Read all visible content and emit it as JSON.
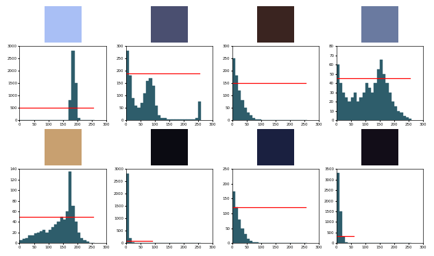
{
  "chart_data": [
    {
      "type": "histogram",
      "color": "#2e5d6b",
      "bins": [
        0,
        10,
        20,
        30,
        40,
        50,
        60,
        70,
        80,
        90,
        100,
        110,
        120,
        130,
        140,
        150,
        160,
        170,
        180,
        190,
        200,
        210,
        220,
        230,
        240,
        250,
        260
      ],
      "counts": [
        0,
        0,
        0,
        0,
        0,
        0,
        0,
        0,
        0,
        0,
        0,
        0,
        0,
        0,
        0,
        0,
        0,
        800,
        2800,
        1500,
        100,
        0,
        0,
        0,
        0,
        0
      ],
      "xlim": [
        0,
        300
      ],
      "xticks": [
        0,
        50,
        100,
        150,
        200,
        250,
        300
      ],
      "ylim": [
        0,
        3000
      ],
      "yticks": [
        0,
        500,
        1000,
        1500,
        2000,
        2500,
        3000
      ],
      "hline": {
        "value": 500,
        "x": [
          0,
          255
        ],
        "color": "#ff0000"
      }
    },
    {
      "type": "histogram",
      "color": "#2e5d6b",
      "bins": [
        0,
        10,
        20,
        30,
        40,
        50,
        60,
        70,
        80,
        90,
        100,
        110,
        120,
        130,
        140,
        150,
        160,
        170,
        180,
        190,
        200,
        210,
        220,
        230,
        240,
        250,
        260
      ],
      "counts": [
        280,
        180,
        90,
        60,
        50,
        70,
        110,
        160,
        170,
        140,
        60,
        20,
        10,
        8,
        5,
        5,
        5,
        5,
        5,
        5,
        5,
        5,
        5,
        5,
        10,
        75
      ],
      "xlim": [
        0,
        300
      ],
      "xticks": [
        0,
        50,
        100,
        150,
        200,
        250,
        300
      ],
      "ylim": [
        0,
        300
      ],
      "yticks": [
        0,
        50,
        100,
        150,
        200,
        250,
        300
      ],
      "hline": {
        "value": 190,
        "x": [
          0,
          255
        ],
        "color": "#ff0000"
      }
    },
    {
      "type": "histogram",
      "color": "#2e5d6b",
      "bins": [
        0,
        10,
        20,
        30,
        40,
        50,
        60,
        70,
        80,
        90,
        100,
        110,
        120,
        130,
        140,
        150,
        160,
        170,
        180,
        190,
        200,
        210,
        220,
        230,
        240,
        250,
        260
      ],
      "counts": [
        250,
        180,
        120,
        80,
        50,
        30,
        20,
        10,
        5,
        3,
        2,
        1,
        0,
        0,
        0,
        0,
        0,
        0,
        0,
        0,
        0,
        0,
        0,
        0,
        0,
        0
      ],
      "xlim": [
        0,
        300
      ],
      "xticks": [
        0,
        50,
        100,
        150,
        200,
        250,
        300
      ],
      "ylim": [
        0,
        300
      ],
      "yticks": [
        0,
        50,
        100,
        150,
        200,
        250,
        300
      ],
      "hline": {
        "value": 150,
        "x": [
          0,
          255
        ],
        "color": "#ff0000"
      }
    },
    {
      "type": "histogram",
      "color": "#2e5d6b",
      "bins": [
        0,
        10,
        20,
        30,
        40,
        50,
        60,
        70,
        80,
        90,
        100,
        110,
        120,
        130,
        140,
        150,
        160,
        170,
        180,
        190,
        200,
        210,
        220,
        230,
        240,
        250,
        260
      ],
      "counts": [
        60,
        40,
        30,
        25,
        20,
        25,
        30,
        20,
        25,
        30,
        40,
        35,
        30,
        40,
        55,
        65,
        50,
        40,
        30,
        20,
        15,
        10,
        8,
        5,
        3,
        2
      ],
      "xlim": [
        0,
        300
      ],
      "xticks": [
        0,
        50,
        100,
        150,
        200,
        250,
        300
      ],
      "ylim": [
        0,
        80
      ],
      "yticks": [
        0,
        10,
        20,
        30,
        40,
        50,
        60,
        70,
        80
      ],
      "hline": {
        "value": 45,
        "x": [
          0,
          255
        ],
        "color": "#ff0000"
      }
    },
    {
      "type": "histogram",
      "color": "#2e5d6b",
      "bins": [
        0,
        10,
        20,
        30,
        40,
        50,
        60,
        70,
        80,
        90,
        100,
        110,
        120,
        130,
        140,
        150,
        160,
        170,
        180,
        190,
        200,
        210,
        220,
        230,
        240,
        250,
        260
      ],
      "counts": [
        5,
        8,
        10,
        15,
        15,
        18,
        20,
        22,
        25,
        20,
        25,
        30,
        35,
        40,
        50,
        45,
        60,
        135,
        70,
        40,
        20,
        10,
        5,
        3,
        1,
        0
      ],
      "xlim": [
        0,
        300
      ],
      "xticks": [
        0,
        50,
        100,
        150,
        200,
        250,
        300
      ],
      "ylim": [
        0,
        140
      ],
      "yticks": [
        0,
        20,
        40,
        60,
        80,
        100,
        120,
        140
      ],
      "hline": {
        "value": 50,
        "x": [
          0,
          255
        ],
        "color": "#ff0000"
      }
    },
    {
      "type": "histogram",
      "color": "#2e5d6b",
      "bins": [
        0,
        10,
        20,
        30,
        40,
        50,
        60,
        70,
        80,
        90,
        100,
        110,
        120,
        130,
        140,
        150,
        160,
        170,
        180,
        190,
        200,
        210,
        220,
        230,
        240,
        250,
        260
      ],
      "counts": [
        2800,
        200,
        30,
        10,
        5,
        2,
        1,
        0,
        0,
        0,
        0,
        0,
        0,
        0,
        0,
        0,
        0,
        0,
        0,
        0,
        0,
        0,
        0,
        0,
        0,
        0
      ],
      "xlim": [
        0,
        300
      ],
      "xticks": [
        0,
        50,
        100,
        150,
        200,
        250,
        300
      ],
      "ylim": [
        0,
        3000
      ],
      "yticks": [
        0,
        500,
        1000,
        1500,
        2000,
        2500,
        3000
      ],
      "hline": {
        "value": 100,
        "x": [
          0,
          90
        ],
        "color": "#ff0000"
      }
    },
    {
      "type": "histogram",
      "color": "#2e5d6b",
      "bins": [
        0,
        10,
        20,
        30,
        40,
        50,
        60,
        70,
        80,
        90,
        100,
        110,
        120,
        130,
        140,
        150,
        160,
        170,
        180,
        190,
        200,
        210,
        220,
        230,
        240,
        250,
        260
      ],
      "counts": [
        175,
        120,
        80,
        50,
        30,
        15,
        8,
        4,
        2,
        1,
        0,
        0,
        0,
        0,
        0,
        0,
        0,
        0,
        0,
        0,
        0,
        0,
        0,
        0,
        0,
        0
      ],
      "xlim": [
        0,
        300
      ],
      "xticks": [
        0,
        50,
        100,
        150,
        200,
        250,
        300
      ],
      "ylim": [
        0,
        250
      ],
      "yticks": [
        0,
        50,
        100,
        150,
        200,
        250
      ],
      "hline": {
        "value": 120,
        "x": [
          0,
          255
        ],
        "color": "#ff0000"
      }
    },
    {
      "type": "histogram",
      "color": "#2e5d6b",
      "bins": [
        0,
        10,
        20,
        30,
        40,
        50,
        60,
        70,
        80,
        90,
        100,
        110,
        120,
        130,
        140,
        150,
        160,
        170,
        180,
        190,
        200,
        210,
        220,
        230,
        240,
        250,
        260
      ],
      "counts": [
        3300,
        1500,
        300,
        50,
        10,
        2,
        0,
        0,
        0,
        0,
        0,
        0,
        0,
        0,
        0,
        0,
        0,
        0,
        0,
        0,
        0,
        0,
        0,
        0,
        0,
        0
      ],
      "xlim": [
        0,
        300
      ],
      "xticks": [
        0,
        50,
        100,
        150,
        200,
        250,
        300
      ],
      "ylim": [
        0,
        3500
      ],
      "yticks": [
        0,
        500,
        1000,
        1500,
        2000,
        2500,
        3000,
        3500
      ],
      "hline": {
        "value": 350,
        "x": [
          0,
          60
        ],
        "color": "#ff0000"
      }
    }
  ]
}
